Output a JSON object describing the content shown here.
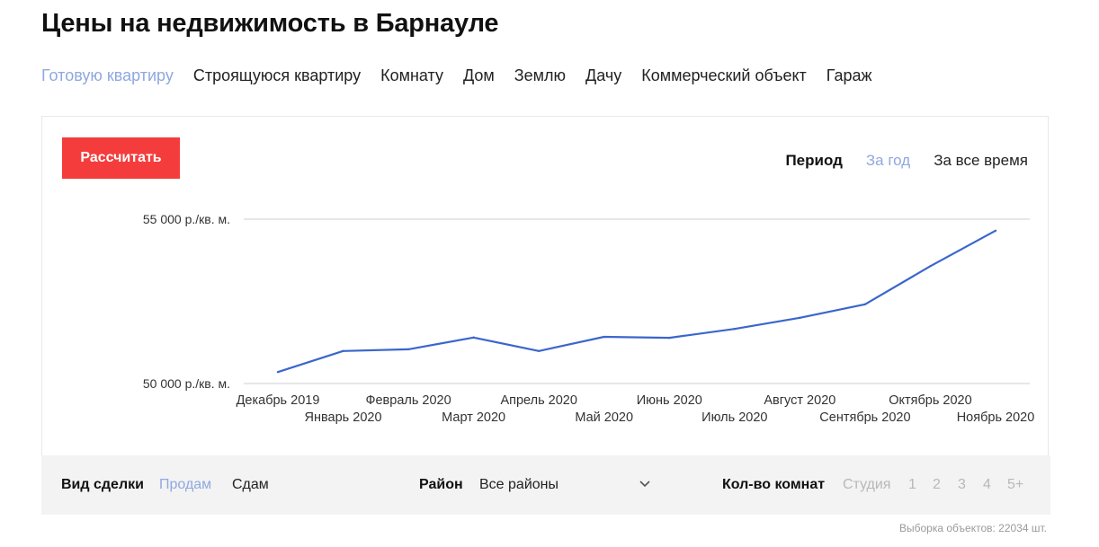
{
  "page": {
    "title": "Цены на недвижимость в Барнауле"
  },
  "property_types": [
    {
      "label": "Готовую квартиру",
      "active": true
    },
    {
      "label": "Строящуюся квартиру",
      "active": false
    },
    {
      "label": "Комнату",
      "active": false
    },
    {
      "label": "Дом",
      "active": false
    },
    {
      "label": "Землю",
      "active": false
    },
    {
      "label": "Дачу",
      "active": false
    },
    {
      "label": "Коммерческий объект",
      "active": false
    },
    {
      "label": "Гараж",
      "active": false
    }
  ],
  "calc_button": {
    "label": "Рассчитать"
  },
  "period": {
    "label": "Период",
    "options": [
      {
        "label": "За год",
        "active": true
      },
      {
        "label": "За все время",
        "active": false
      }
    ]
  },
  "chart_data": {
    "type": "line",
    "categories": [
      "Декабрь 2019",
      "Январь 2020",
      "Февраль 2020",
      "Март 2020",
      "Апрель 2020",
      "Май 2020",
      "Июнь 2020",
      "Июль 2020",
      "Август 2020",
      "Сентябрь 2020",
      "Октябрь 2020",
      "Ноябрь 2020"
    ],
    "series": [
      {
        "values": [
          50350,
          50990,
          51040,
          51400,
          50990,
          51420,
          51390,
          51660,
          52000,
          52410,
          53570,
          54650
        ]
      }
    ],
    "y_ticks": [
      {
        "value": 55000,
        "label": "55 000 р./кв. м."
      },
      {
        "value": 50000,
        "label": "50 000 р./кв. м."
      }
    ],
    "ylim": [
      50000,
      55000
    ],
    "line_color": "#3a66cc",
    "grid": true
  },
  "filters": {
    "deal": {
      "label": "Вид сделки",
      "options": [
        {
          "label": "Продам",
          "active": true
        },
        {
          "label": "Сдам",
          "active": false
        }
      ]
    },
    "district": {
      "label": "Район",
      "value": "Все районы"
    },
    "rooms": {
      "label": "Кол-во комнат",
      "options": [
        "Студия",
        "1",
        "2",
        "3",
        "4",
        "5+"
      ]
    }
  },
  "footnote": "Выборка объектов: 22034 шт.",
  "colors": {
    "accent": "#f53c3c",
    "active_link": "#8fa8e0",
    "line": "#3a66cc"
  }
}
